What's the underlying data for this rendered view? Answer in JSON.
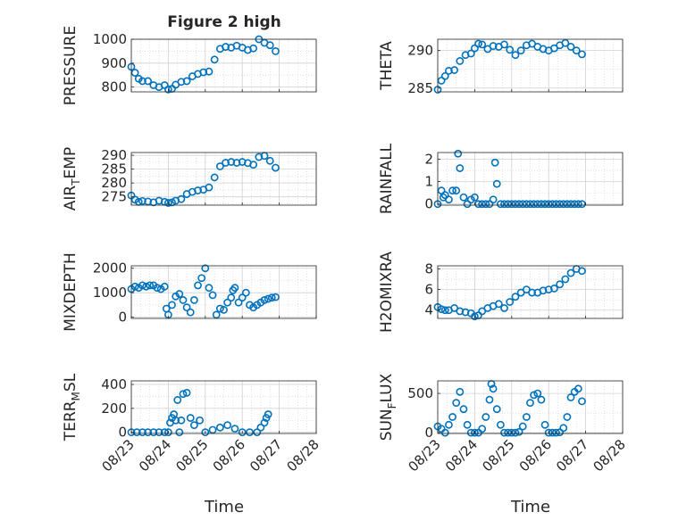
{
  "figure": {
    "title": "Figure 2 high",
    "xlabel": "Time"
  },
  "colors": {
    "marker": "#0072BD",
    "axis": "#262626",
    "grid": "#d0d0d0",
    "background": "#ffffff"
  },
  "chart_data": [
    {
      "type": "scatter",
      "ylabel": "PRESSURE",
      "ylim": [
        780,
        1000
      ],
      "yticks": [
        800,
        900,
        1000
      ],
      "x": [
        23.0,
        23.1,
        23.2,
        23.3,
        23.45,
        23.6,
        23.75,
        23.9,
        24.0,
        24.1,
        24.2,
        24.35,
        24.5,
        24.65,
        24.8,
        24.95,
        25.1,
        25.25,
        25.4,
        25.55,
        25.7,
        25.85,
        26.0,
        26.15,
        26.3,
        26.45,
        26.6,
        26.75,
        26.9
      ],
      "y": [
        885,
        860,
        835,
        825,
        825,
        808,
        800,
        808,
        790,
        793,
        810,
        822,
        825,
        845,
        855,
        862,
        865,
        915,
        960,
        968,
        965,
        973,
        965,
        955,
        962,
        1000,
        985,
        975,
        950
      ]
    },
    {
      "type": "scatter",
      "ylabel": "THETA",
      "ylim": [
        284.5,
        291.5
      ],
      "yticks": [
        285,
        290
      ],
      "x": [
        23.0,
        23.1,
        23.2,
        23.3,
        23.45,
        23.6,
        23.75,
        23.9,
        24.0,
        24.1,
        24.2,
        24.35,
        24.5,
        24.65,
        24.8,
        24.95,
        25.1,
        25.25,
        25.4,
        25.55,
        25.7,
        25.85,
        26.0,
        26.15,
        26.3,
        26.45,
        26.6,
        26.75,
        26.9
      ],
      "y": [
        284.8,
        286.0,
        286.6,
        287.3,
        287.4,
        288.6,
        289.4,
        289.6,
        290.3,
        290.9,
        290.8,
        290.2,
        290.6,
        290.5,
        290.8,
        290.1,
        289.4,
        290.0,
        290.7,
        290.9,
        290.5,
        290.2,
        290.0,
        290.3,
        290.7,
        291.0,
        290.5,
        290.0,
        289.5
      ]
    },
    {
      "type": "scatter",
      "ylabel": "AIR_TEMP",
      "ylim": [
        272,
        291
      ],
      "yticks": [
        275,
        280,
        285,
        290
      ],
      "x": [
        23.0,
        23.1,
        23.2,
        23.3,
        23.45,
        23.6,
        23.75,
        23.9,
        24.0,
        24.1,
        24.2,
        24.35,
        24.5,
        24.65,
        24.8,
        24.95,
        25.1,
        25.25,
        25.4,
        25.55,
        25.7,
        25.85,
        26.0,
        26.15,
        26.3,
        26.45,
        26.6,
        26.75,
        26.9
      ],
      "y": [
        275.5,
        274.0,
        273.2,
        273.5,
        273.3,
        273.0,
        273.6,
        273.2,
        272.8,
        273.0,
        273.6,
        274.2,
        276.0,
        276.8,
        277.3,
        277.6,
        278.4,
        282.0,
        286.0,
        287.3,
        287.6,
        287.3,
        287.6,
        287.2,
        286.6,
        289.4,
        289.8,
        288.0,
        285.5
      ]
    },
    {
      "type": "scatter",
      "ylabel": "RAINFALL",
      "ylim": [
        -0.05,
        2.3
      ],
      "yticks": [
        0,
        1,
        2
      ],
      "x": [
        23.0,
        23.1,
        23.15,
        23.2,
        23.3,
        23.4,
        23.5,
        23.55,
        23.6,
        23.7,
        23.8,
        23.9,
        24.0,
        24.1,
        24.2,
        24.3,
        24.4,
        24.5,
        24.55,
        24.6,
        24.7,
        24.8,
        24.9,
        25.0,
        25.1,
        25.2,
        25.3,
        25.4,
        25.5,
        25.6,
        25.7,
        25.8,
        25.9,
        26.0,
        26.1,
        26.2,
        26.3,
        26.4,
        26.5,
        26.6,
        26.7,
        26.8,
        26.9
      ],
      "y": [
        0,
        0.6,
        0.3,
        0.4,
        0.2,
        0.6,
        0.6,
        2.25,
        1.6,
        0.3,
        0,
        0.2,
        0.3,
        0,
        0,
        0,
        0,
        0.2,
        1.85,
        0.9,
        0,
        0,
        0,
        0,
        0,
        0,
        0,
        0,
        0,
        0,
        0,
        0,
        0,
        0,
        0,
        0,
        0,
        0,
        0,
        0,
        0,
        0,
        0
      ]
    },
    {
      "type": "scatter",
      "ylabel": "MIXDEPTH",
      "ylim": [
        -50,
        2100
      ],
      "yticks": [
        0,
        1000,
        2000
      ],
      "x": [
        23.0,
        23.1,
        23.2,
        23.3,
        23.4,
        23.5,
        23.6,
        23.7,
        23.8,
        23.9,
        23.95,
        24.0,
        24.1,
        24.2,
        24.3,
        24.4,
        24.5,
        24.6,
        24.7,
        24.8,
        24.9,
        25.0,
        25.1,
        25.2,
        25.3,
        25.4,
        25.5,
        25.6,
        25.7,
        25.75,
        25.8,
        25.9,
        26.0,
        26.1,
        26.2,
        26.3,
        26.4,
        26.5,
        26.6,
        26.7,
        26.8,
        26.9
      ],
      "y": [
        1150,
        1250,
        1200,
        1300,
        1250,
        1300,
        1300,
        1200,
        1150,
        1250,
        350,
        100,
        500,
        850,
        950,
        700,
        400,
        200,
        700,
        1300,
        1600,
        2000,
        1200,
        900,
        100,
        350,
        300,
        600,
        800,
        1100,
        1200,
        600,
        800,
        1000,
        500,
        400,
        500,
        600,
        700,
        750,
        800,
        820
      ]
    },
    {
      "type": "scatter",
      "ylabel": "H2OMIXRA",
      "ylim": [
        3.2,
        8.3
      ],
      "yticks": [
        4,
        6,
        8
      ],
      "x": [
        23.0,
        23.1,
        23.2,
        23.3,
        23.45,
        23.6,
        23.75,
        23.9,
        24.0,
        24.1,
        24.2,
        24.35,
        24.5,
        24.65,
        24.8,
        24.95,
        25.1,
        25.25,
        25.4,
        25.55,
        25.7,
        25.85,
        26.0,
        26.15,
        26.3,
        26.45,
        26.6,
        26.75,
        26.9
      ],
      "y": [
        4.3,
        4.1,
        4.0,
        4.0,
        4.2,
        3.9,
        3.8,
        3.7,
        3.4,
        3.5,
        3.9,
        4.2,
        4.4,
        4.6,
        4.2,
        4.8,
        5.3,
        5.7,
        6.0,
        5.7,
        5.7,
        5.9,
        6.0,
        6.1,
        6.5,
        7.0,
        7.6,
        8.0,
        7.8
      ]
    },
    {
      "type": "scatter",
      "ylabel": "TERR_MSL",
      "ylim": [
        -10,
        430
      ],
      "yticks": [
        0,
        200,
        400
      ],
      "x": [
        23.0,
        23.15,
        23.3,
        23.45,
        23.6,
        23.75,
        23.9,
        24.0,
        24.05,
        24.1,
        24.15,
        24.2,
        24.25,
        24.3,
        24.35,
        24.4,
        24.5,
        24.6,
        24.7,
        24.85,
        25.0,
        25.2,
        25.4,
        25.6,
        25.8,
        26.0,
        26.2,
        26.4,
        26.5,
        26.6,
        26.65,
        26.7
      ],
      "y": [
        0,
        0,
        0,
        0,
        0,
        0,
        0,
        0,
        80,
        120,
        150,
        100,
        270,
        0,
        100,
        320,
        330,
        120,
        60,
        100,
        0,
        20,
        40,
        60,
        30,
        0,
        0,
        0,
        40,
        80,
        120,
        150
      ]
    },
    {
      "type": "scatter",
      "ylabel": "SUN_FLUX",
      "ylim": [
        -10,
        660
      ],
      "yticks": [
        0,
        500
      ],
      "x": [
        23.0,
        23.1,
        23.2,
        23.3,
        23.4,
        23.5,
        23.6,
        23.7,
        23.8,
        23.9,
        24.0,
        24.1,
        24.2,
        24.3,
        24.4,
        24.45,
        24.5,
        24.6,
        24.7,
        24.8,
        24.9,
        25.0,
        25.1,
        25.2,
        25.3,
        25.4,
        25.5,
        25.6,
        25.7,
        25.8,
        25.9,
        26.0,
        26.1,
        26.2,
        26.3,
        26.4,
        26.5,
        26.6,
        26.7,
        26.8,
        26.9
      ],
      "y": [
        80,
        50,
        0,
        100,
        200,
        380,
        520,
        300,
        100,
        0,
        0,
        0,
        50,
        200,
        420,
        620,
        560,
        300,
        100,
        0,
        0,
        0,
        0,
        10,
        80,
        200,
        380,
        480,
        500,
        420,
        100,
        0,
        0,
        0,
        5,
        60,
        200,
        450,
        520,
        560,
        400
      ]
    }
  ],
  "xaxis": {
    "xlim": [
      23,
      28
    ],
    "tick_labels": [
      "08/23",
      "08/24",
      "08/25",
      "08/26",
      "08/27",
      "08/28"
    ]
  }
}
